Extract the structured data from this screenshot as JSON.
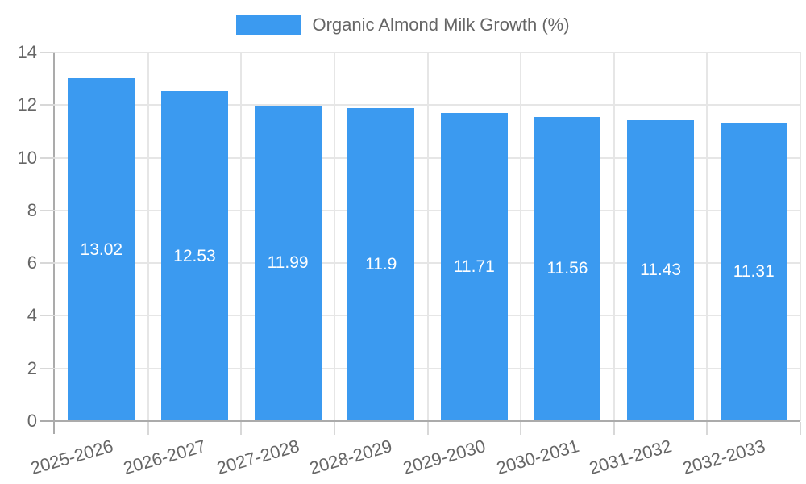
{
  "chart_data": {
    "type": "bar",
    "title": "",
    "series_name": "Organic Almond Milk Growth (%)",
    "categories": [
      "2025-2026",
      "2026-2027",
      "2027-2028",
      "2028-2029",
      "2029-2030",
      "2030-2031",
      "2031-2032",
      "2032-2033"
    ],
    "values": [
      13.02,
      12.53,
      11.99,
      11.9,
      11.71,
      11.56,
      11.43,
      11.31
    ],
    "value_labels": [
      "13.02",
      "12.53",
      "11.99",
      "11.9",
      "11.71",
      "11.56",
      "11.43",
      "11.31"
    ],
    "xlabel": "",
    "ylabel": "",
    "ylim": [
      0,
      14
    ],
    "yticks": [
      0,
      2,
      4,
      6,
      8,
      10,
      12,
      14
    ],
    "grid": true,
    "legend_position": "top",
    "bar_color": "#3b9af0",
    "value_label_color": "#ffffff",
    "axis_text_color": "#666666"
  }
}
